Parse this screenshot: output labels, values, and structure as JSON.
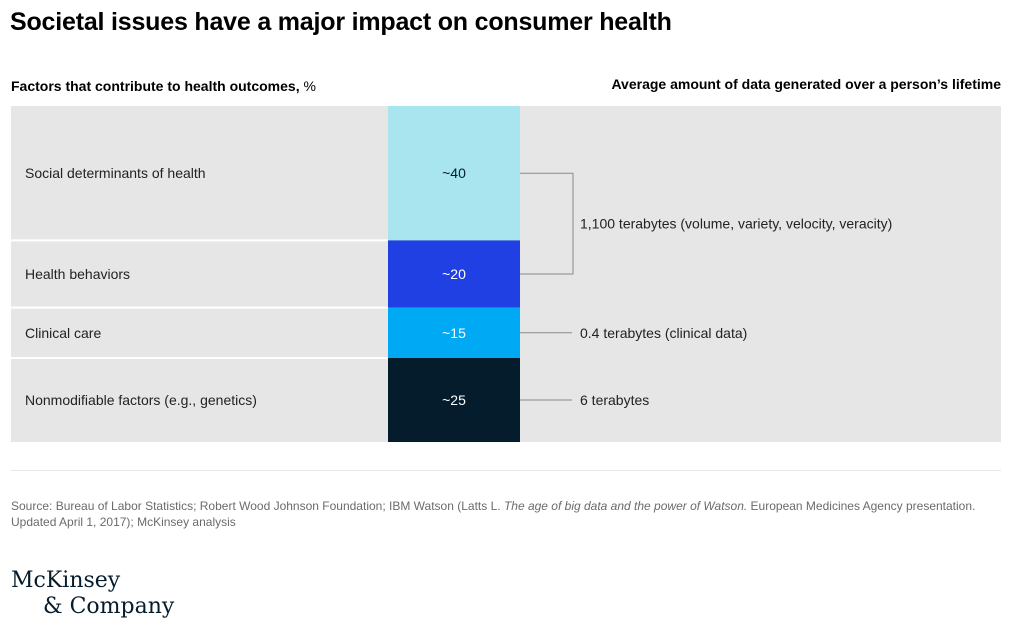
{
  "title": "Societal issues have a major impact on consumer health",
  "left_header": {
    "label": "Factors that contribute to health outcomes,",
    "unit": "%"
  },
  "right_header": "Average amount of data generated over a person’s lifetime",
  "chart_data": {
    "type": "bar",
    "orientation": "stacked-horizontal-segments",
    "categories": [
      "Social determinants of health",
      "Health behaviors",
      "Clinical care",
      "Nonmodifiable factors (e.g., genetics)"
    ],
    "values": [
      40,
      20,
      15,
      25
    ],
    "value_labels": [
      "~40",
      "~20",
      "~15",
      "~25"
    ],
    "colors": [
      "#a9e5ee",
      "#2140e4",
      "#00a9f4",
      "#051c2c"
    ],
    "label_colors": [
      "#051c2c",
      "#ffffff",
      "#ffffff",
      "#ffffff"
    ],
    "background": "#e6e6e6",
    "annotations": [
      {
        "text": "1,100 terabytes (volume, variety, velocity, veracity)",
        "spans": [
          0,
          1
        ]
      },
      {
        "text": "0.4 terabytes (clinical data)",
        "spans": [
          2
        ]
      },
      {
        "text": "6 terabytes",
        "spans": [
          3
        ]
      }
    ]
  },
  "source": {
    "prefix": "Source: Bureau of Labor Statistics; Robert Wood Johnson Foundation; IBM Watson (Latts L. ",
    "italic": "The age of big data and the power of Watson.",
    "suffix": " European Medicines Agency presentation. Updated April 1, 2017); McKinsey analysis"
  },
  "logo": {
    "line1": "McKinsey",
    "line2": "& Company"
  }
}
